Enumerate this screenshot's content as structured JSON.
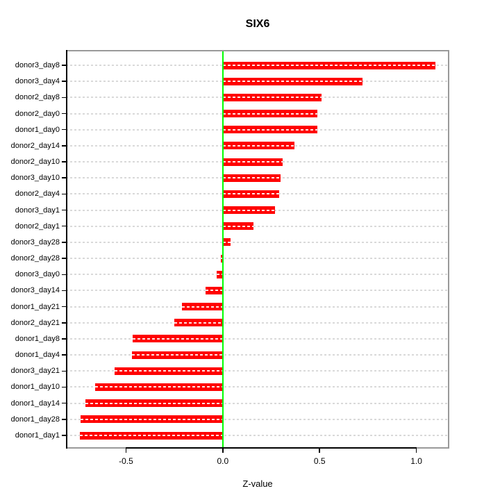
{
  "chart_data": {
    "type": "bar",
    "orientation": "horizontal",
    "title": "SIX6",
    "xlabel": "Z-value",
    "ylabel": "",
    "categories": [
      "donor3_day8",
      "donor3_day4",
      "donor2_day8",
      "donor2_day0",
      "donor1_day0",
      "donor2_day14",
      "donor2_day10",
      "donor3_day10",
      "donor2_day4",
      "donor3_day1",
      "donor2_day1",
      "donor3_day28",
      "donor2_day28",
      "donor3_day0",
      "donor3_day14",
      "donor1_day21",
      "donor2_day21",
      "donor1_day8",
      "donor1_day4",
      "donor3_day21",
      "donor1_day10",
      "donor1_day14",
      "donor1_day28",
      "donor1_day1"
    ],
    "values": [
      1.1,
      0.72,
      0.51,
      0.49,
      0.49,
      0.37,
      0.31,
      0.3,
      0.29,
      0.27,
      0.16,
      0.04,
      -0.01,
      -0.03,
      -0.09,
      -0.21,
      -0.25,
      -0.465,
      -0.47,
      -0.56,
      -0.66,
      -0.71,
      -0.735,
      -0.74
    ],
    "xlim": [
      -0.81,
      1.17
    ],
    "x_ticks": [
      {
        "value": -0.5,
        "label": "-0.5"
      },
      {
        "value": 0.0,
        "label": "0.0"
      },
      {
        "value": 0.5,
        "label": "0.5"
      },
      {
        "value": 1.0,
        "label": "1.0"
      }
    ],
    "zero_line_value": 0,
    "grid": "horizontal dashed line per category row",
    "legend": "none",
    "colors": {
      "bar": "#ff0000",
      "bar_center_dash": "rgba(255,255,255,0.9)",
      "zero_line": "#00ff00",
      "gridline": "#d9d9d9",
      "frame": "#999999",
      "axis": "#000000",
      "background": "#ffffff"
    }
  }
}
